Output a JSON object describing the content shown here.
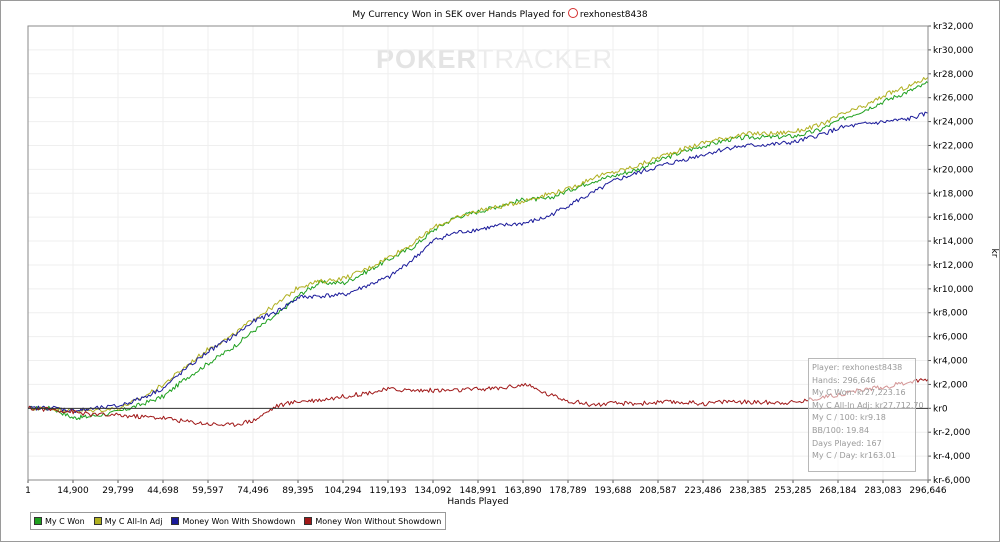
{
  "chart_data": {
    "type": "line",
    "title": "My Currency Won in SEK over Hands Played for",
    "player_name": "rexhonest8438",
    "xlabel": "Hands Played",
    "ylabel": "kr",
    "x_ticks": [
      "1",
      "14,900",
      "29,799",
      "44,698",
      "59,597",
      "74,496",
      "89,395",
      "104,294",
      "119,193",
      "134,092",
      "148,991",
      "163,890",
      "178,789",
      "193,688",
      "208,587",
      "223,486",
      "238,385",
      "253,285",
      "268,184",
      "283,083",
      "296,646"
    ],
    "y_ticks": [
      "kr32,000",
      "kr30,000",
      "kr28,000",
      "kr26,000",
      "kr24,000",
      "kr22,000",
      "kr20,000",
      "kr18,000",
      "kr16,000",
      "kr14,000",
      "kr12,000",
      "kr10,000",
      "kr8,000",
      "kr6,000",
      "kr4,000",
      "kr2,000",
      "kr0",
      "kr-2,000",
      "kr-4,000",
      "kr-6,000"
    ],
    "xlim": [
      1,
      296646
    ],
    "ylim": [
      -6000,
      32000
    ],
    "grid": "vertical-and-horizontal",
    "legend_position": "bottom-left",
    "x": [
      1,
      8000,
      14900,
      20000,
      29799,
      37000,
      44698,
      52000,
      59597,
      67000,
      74496,
      82000,
      89395,
      96000,
      104294,
      112000,
      119193,
      127000,
      134092,
      141000,
      148991,
      156000,
      163890,
      171000,
      178789,
      186000,
      193688,
      201000,
      208587,
      216000,
      223486,
      231000,
      238385,
      246000,
      253285,
      261000,
      268184,
      276000,
      283083,
      290000,
      296646
    ],
    "series": [
      {
        "name": "My C Won",
        "color": "#1fa01f",
        "values": [
          0,
          0,
          -800,
          -700,
          -300,
          300,
          1000,
          2500,
          3800,
          5000,
          6500,
          7800,
          9500,
          10500,
          10500,
          11500,
          12500,
          13500,
          15000,
          16000,
          16500,
          17000,
          17500,
          17500,
          18300,
          19000,
          19500,
          20000,
          20800,
          21500,
          22000,
          22500,
          22700,
          22700,
          22800,
          23300,
          24200,
          25000,
          25800,
          26500,
          27223.16
        ]
      },
      {
        "name": "My C All-In Adj",
        "color": "#b0b020",
        "values": [
          0,
          0,
          -200,
          -200,
          0,
          800,
          2000,
          3500,
          5000,
          6000,
          7500,
          8700,
          10200,
          10600,
          10900,
          11700,
          12700,
          13800,
          15200,
          15900,
          16600,
          16900,
          17400,
          17900,
          18400,
          19300,
          19800,
          20300,
          21100,
          21700,
          22300,
          22700,
          23000,
          23000,
          23200,
          23700,
          24600,
          25300,
          26300,
          26900,
          27712.7
        ]
      },
      {
        "name": "Money Won With Showdown",
        "color": "#1a1a9a",
        "values": [
          0,
          50,
          -200,
          -100,
          200,
          800,
          1700,
          3300,
          4800,
          5900,
          7300,
          8100,
          9300,
          9400,
          9500,
          10300,
          11000,
          12500,
          14100,
          14700,
          15000,
          15300,
          15500,
          16000,
          17100,
          18000,
          19100,
          19700,
          20300,
          20800,
          21300,
          21800,
          22000,
          22100,
          22300,
          22900,
          23500,
          23800,
          24000,
          24200,
          24700
        ]
      },
      {
        "name": "Money Won Without Showdown",
        "color": "#a01818",
        "values": [
          0,
          -100,
          -300,
          -500,
          -600,
          -700,
          -800,
          -1100,
          -1300,
          -1400,
          -1000,
          200,
          600,
          700,
          1000,
          1300,
          1600,
          1500,
          1500,
          1500,
          1600,
          1700,
          2000,
          1200,
          600,
          300,
          400,
          400,
          500,
          500,
          400,
          600,
          500,
          500,
          500,
          900,
          1200,
          1600,
          1800,
          2200,
          2450
        ]
      }
    ]
  },
  "watermark": {
    "bold": "POKER",
    "light": "TRACKER"
  },
  "stats": [
    "Player: rexhonest8438",
    "Hands: 296,646",
    "My C Won: kr27,223.16",
    "My C All-In Adj: kr27,712.70",
    "My C / 100: kr9.18",
    "BB/100: 19.84",
    "Days Played: 167",
    "My C / Day: kr163.01"
  ]
}
